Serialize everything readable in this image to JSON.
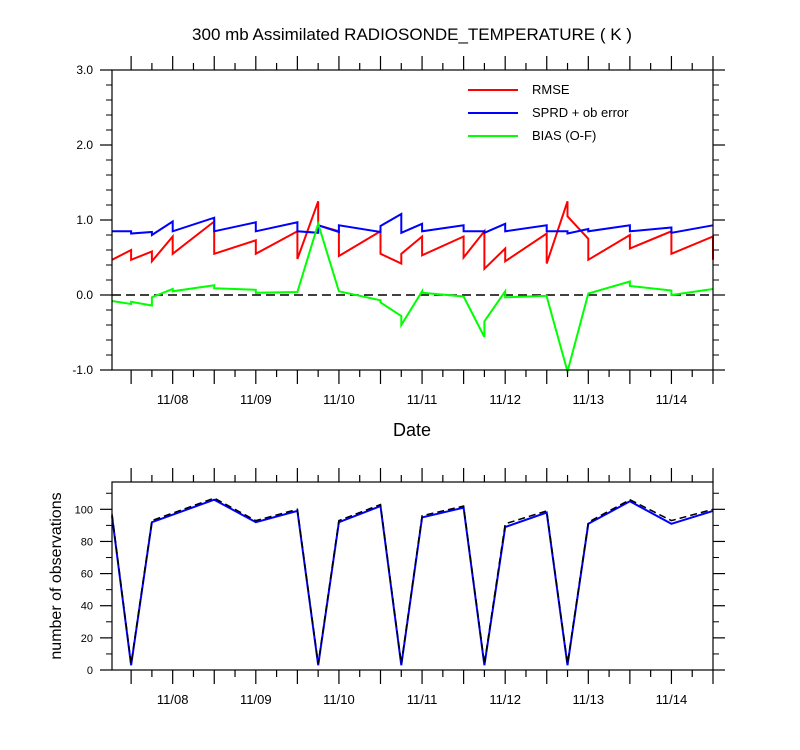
{
  "chart_data": [
    {
      "type": "line",
      "title": "300 mb Assimilated RADIOSONDE_TEMPERATURE ( K )",
      "xlabel": "Date",
      "ylabel": "",
      "x_tick_labels": [
        "11/08",
        "11/09",
        "11/10",
        "11/11",
        "11/12",
        "11/13",
        "11/14"
      ],
      "x_tick_days": [
        8,
        9,
        10,
        11,
        12,
        13,
        14
      ],
      "xlim": [
        7.27,
        14.5
      ],
      "ylim": [
        -1.0,
        3.0
      ],
      "y_ticks": [
        -1.0,
        0.0,
        1.0,
        2.0,
        3.0
      ],
      "y_tick_labels": [
        "-1.0",
        "0.0",
        "1.0",
        "2.0",
        "3.0"
      ],
      "reference_line": 0.0,
      "legend_position": "top-right",
      "colors": {
        "rmse": "#ff0000",
        "sprd": "#0000ff",
        "bias": "#00ff00",
        "reference": "#000000"
      },
      "series": [
        {
          "name": "RMSE",
          "key": "rmse",
          "x": [
            7.27,
            7.5,
            7.5,
            7.75,
            7.75,
            8.0,
            8.0,
            8.5,
            8.5,
            9.0,
            9.0,
            9.5,
            9.5,
            9.75,
            9.75,
            10.0,
            10.0,
            10.5,
            10.5,
            10.75,
            10.75,
            11.0,
            11.0,
            11.5,
            11.5,
            11.75,
            11.75,
            12.0,
            12.0,
            12.5,
            12.5,
            12.75,
            12.75,
            13.0,
            13.0,
            13.5,
            13.5,
            14.0,
            14.0,
            14.5,
            14.5
          ],
          "y": [
            0.47,
            0.6,
            0.47,
            0.58,
            0.45,
            0.78,
            0.55,
            0.98,
            0.55,
            0.73,
            0.55,
            0.85,
            0.48,
            1.25,
            0.93,
            0.85,
            0.52,
            0.85,
            0.55,
            0.42,
            0.55,
            0.78,
            0.53,
            0.78,
            0.5,
            0.85,
            0.35,
            0.62,
            0.45,
            0.82,
            0.42,
            1.25,
            1.05,
            0.75,
            0.47,
            0.8,
            0.62,
            0.85,
            0.55,
            0.78,
            0.47
          ]
        },
        {
          "name": "SPRD + ob error",
          "key": "sprd",
          "x": [
            7.27,
            7.5,
            7.5,
            7.75,
            7.75,
            8.0,
            8.0,
            8.5,
            8.5,
            9.0,
            9.0,
            9.5,
            9.5,
            9.75,
            9.75,
            10.0,
            10.0,
            10.5,
            10.5,
            10.75,
            10.75,
            11.0,
            11.0,
            11.5,
            11.5,
            11.75,
            11.75,
            12.0,
            12.0,
            12.5,
            12.5,
            12.75,
            12.75,
            13.0,
            13.0,
            13.5,
            13.5,
            14.0,
            14.0,
            14.5
          ],
          "y": [
            0.85,
            0.85,
            0.82,
            0.84,
            0.8,
            0.98,
            0.85,
            1.03,
            0.85,
            0.97,
            0.85,
            0.97,
            0.85,
            0.83,
            0.93,
            0.84,
            0.93,
            0.84,
            0.92,
            1.08,
            0.83,
            0.95,
            0.85,
            0.93,
            0.85,
            0.85,
            0.83,
            0.95,
            0.85,
            0.93,
            0.85,
            0.85,
            0.82,
            0.88,
            0.85,
            0.93,
            0.85,
            0.9,
            0.83,
            0.93
          ]
        },
        {
          "name": "BIAS (O-F)",
          "key": "bias",
          "x": [
            7.27,
            7.5,
            7.5,
            7.75,
            7.75,
            8.0,
            8.0,
            8.5,
            8.5,
            9.0,
            9.0,
            9.5,
            9.5,
            9.75,
            9.75,
            10.0,
            10.0,
            10.5,
            10.5,
            10.75,
            10.75,
            11.0,
            11.0,
            11.5,
            11.5,
            11.75,
            11.75,
            12.0,
            12.0,
            12.5,
            12.5,
            12.75,
            12.75,
            13.0,
            13.0,
            13.5,
            13.5,
            14.0,
            14.0,
            14.5
          ],
          "y": [
            -0.08,
            -0.12,
            -0.09,
            -0.14,
            -0.03,
            0.08,
            0.05,
            0.13,
            0.09,
            0.07,
            0.03,
            0.04,
            0.04,
            0.95,
            0.95,
            0.05,
            0.05,
            -0.07,
            -0.1,
            -0.28,
            -0.4,
            0.05,
            0.03,
            -0.02,
            -0.02,
            -0.56,
            -0.35,
            0.05,
            -0.03,
            -0.01,
            -0.02,
            -1.02,
            -1.02,
            0.02,
            0.02,
            0.18,
            0.12,
            0.06,
            0.0,
            0.08
          ]
        }
      ]
    },
    {
      "type": "line",
      "title": "",
      "xlabel": "",
      "ylabel": "number of observations",
      "x_tick_labels": [
        "11/08",
        "11/09",
        "11/10",
        "11/11",
        "11/12",
        "11/13",
        "11/14"
      ],
      "x_tick_days": [
        8,
        9,
        10,
        11,
        12,
        13,
        14
      ],
      "xlim": [
        7.27,
        14.5
      ],
      "ylim": [
        0,
        117
      ],
      "y_ticks": [
        0,
        20,
        40,
        60,
        80,
        100
      ],
      "y_tick_labels": [
        "0",
        "20",
        "40",
        "60",
        "80",
        "100"
      ],
      "colors": {
        "assimilated": "#0000ff",
        "possible": "#000000"
      },
      "series": [
        {
          "key": "assimilated",
          "x": [
            7.27,
            7.5,
            7.75,
            8.5,
            9.0,
            9.5,
            9.75,
            10.0,
            10.5,
            10.75,
            11.0,
            11.5,
            11.75,
            12.0,
            12.5,
            12.75,
            13.0,
            13.5,
            14.0,
            14.5
          ],
          "y": [
            96,
            3,
            92,
            106,
            92,
            99,
            3,
            92,
            102,
            3,
            95,
            101,
            3,
            89,
            98,
            3,
            91,
            105,
            91,
            99
          ]
        },
        {
          "key": "possible",
          "dashed": true,
          "x": [
            7.27,
            7.5,
            7.75,
            8.5,
            9.0,
            9.5,
            9.75,
            10.0,
            10.5,
            10.75,
            11.0,
            11.5,
            11.75,
            12.0,
            12.5,
            12.75,
            13.0,
            13.5,
            14.0,
            14.5
          ],
          "y": [
            97,
            4,
            93,
            107,
            93,
            100,
            4,
            93,
            103,
            4,
            96,
            102,
            4,
            91,
            99,
            4,
            92,
            106,
            93,
            100
          ]
        }
      ]
    }
  ]
}
